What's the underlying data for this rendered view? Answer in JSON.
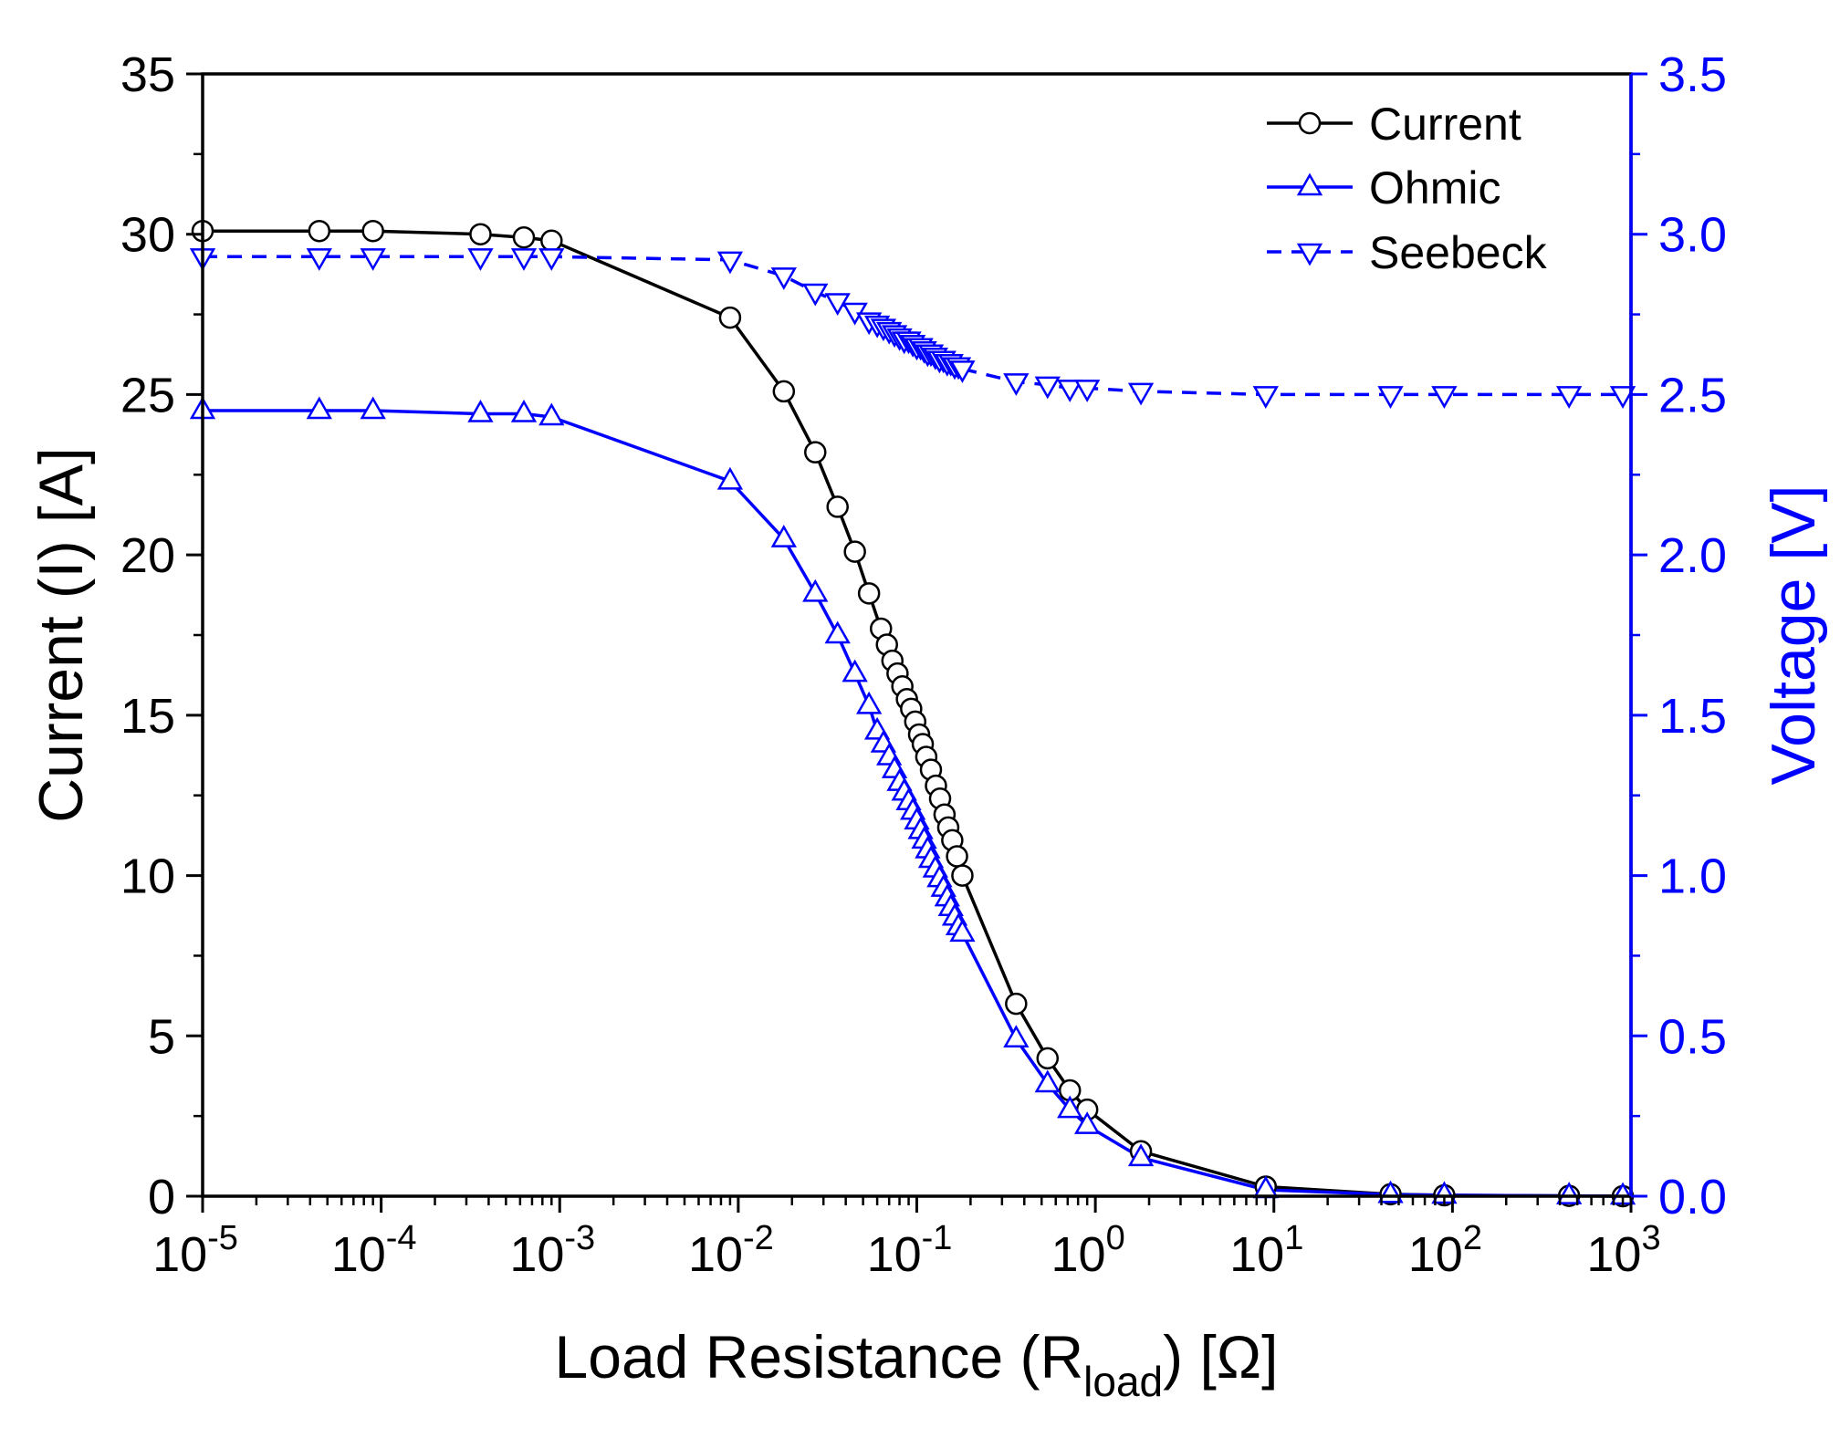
{
  "chart_data": {
    "type": "line",
    "title": "",
    "xlabel": "Load Resistance (R",
    "xlabel_sub": "load",
    "xlabel_tail": ") [Ω]",
    "ylabel": "Current (I) [A]",
    "y2label": "Voltage [V]",
    "xscale": "log",
    "xlim": [
      1e-05,
      1000
    ],
    "ylim": [
      0,
      35
    ],
    "y2lim": [
      0,
      3.5
    ],
    "x_tick_labels": [
      {
        "base": "10",
        "exp": "-5"
      },
      {
        "base": "10",
        "exp": "-4"
      },
      {
        "base": "10",
        "exp": "-3"
      },
      {
        "base": "10",
        "exp": "-2"
      },
      {
        "base": "10",
        "exp": "-1"
      },
      {
        "base": "10",
        "exp": "0"
      },
      {
        "base": "10",
        "exp": "1"
      },
      {
        "base": "10",
        "exp": "2"
      },
      {
        "base": "10",
        "exp": "3"
      }
    ],
    "y_ticks": [
      "0",
      "5",
      "10",
      "15",
      "20",
      "25",
      "30",
      "35"
    ],
    "y2_ticks": [
      "0.0",
      "0.5",
      "1.0",
      "1.5",
      "2.0",
      "2.5",
      "3.0",
      "3.5"
    ],
    "legend": {
      "position": "top-right"
    },
    "colors": {
      "current": "#000000",
      "ohmic": "#0000ff",
      "seebeck": "#0000ff",
      "right_axis": "#0000ff"
    },
    "series": [
      {
        "name": "Current",
        "axis": "left",
        "marker": "circle",
        "line": "solid",
        "color": "#000000",
        "x": [
          1e-05,
          4.5e-05,
          9e-05,
          0.00036,
          0.00063,
          0.0009,
          0.009,
          0.018,
          0.027,
          0.036,
          0.045,
          0.054,
          0.063,
          0.068,
          0.073,
          0.078,
          0.083,
          0.088,
          0.093,
          0.098,
          0.103,
          0.108,
          0.113,
          0.12,
          0.128,
          0.135,
          0.143,
          0.15,
          0.158,
          0.168,
          0.18,
          0.36,
          0.54,
          0.72,
          0.9,
          1.8,
          9,
          45,
          90,
          450,
          900
        ],
        "y": [
          30.1,
          30.1,
          30.1,
          30.0,
          29.9,
          29.8,
          27.4,
          25.1,
          23.2,
          21.5,
          20.1,
          18.8,
          17.7,
          17.2,
          16.7,
          16.3,
          15.9,
          15.5,
          15.2,
          14.8,
          14.4,
          14.1,
          13.7,
          13.3,
          12.8,
          12.4,
          11.9,
          11.5,
          11.1,
          10.6,
          10.0,
          6.0,
          4.3,
          3.3,
          2.7,
          1.4,
          0.3,
          0.06,
          0.03,
          0.01,
          0.0
        ]
      },
      {
        "name": "Ohmic",
        "axis": "right",
        "marker": "triangle-up",
        "line": "solid",
        "color": "#0000ff",
        "x": [
          1e-05,
          4.5e-05,
          9e-05,
          0.00036,
          0.00063,
          0.0009,
          0.009,
          0.018,
          0.027,
          0.036,
          0.045,
          0.054,
          0.06,
          0.065,
          0.07,
          0.075,
          0.08,
          0.085,
          0.09,
          0.095,
          0.1,
          0.105,
          0.11,
          0.115,
          0.12,
          0.127,
          0.134,
          0.141,
          0.148,
          0.155,
          0.163,
          0.171,
          0.18,
          0.36,
          0.54,
          0.72,
          0.9,
          1.8,
          9,
          45,
          90,
          450,
          900
        ],
        "y": [
          2.45,
          2.45,
          2.45,
          2.44,
          2.44,
          2.43,
          2.23,
          2.05,
          1.88,
          1.75,
          1.63,
          1.53,
          1.45,
          1.41,
          1.37,
          1.33,
          1.29,
          1.26,
          1.23,
          1.2,
          1.17,
          1.14,
          1.11,
          1.08,
          1.05,
          1.02,
          0.99,
          0.96,
          0.93,
          0.9,
          0.87,
          0.84,
          0.82,
          0.49,
          0.35,
          0.27,
          0.22,
          0.12,
          0.02,
          0.005,
          0.003,
          0.001,
          0.0
        ]
      },
      {
        "name": "Seebeck",
        "axis": "right",
        "marker": "triangle-down",
        "line": "dashed",
        "color": "#0000ff",
        "x": [
          1e-05,
          4.5e-05,
          9e-05,
          0.00036,
          0.00063,
          0.0009,
          0.009,
          0.018,
          0.027,
          0.036,
          0.045,
          0.054,
          0.06,
          0.065,
          0.07,
          0.075,
          0.08,
          0.085,
          0.09,
          0.095,
          0.1,
          0.105,
          0.11,
          0.115,
          0.12,
          0.127,
          0.134,
          0.141,
          0.148,
          0.155,
          0.163,
          0.171,
          0.18,
          0.36,
          0.54,
          0.72,
          0.9,
          1.8,
          9,
          45,
          90,
          450,
          900
        ],
        "y": [
          2.93,
          2.93,
          2.93,
          2.93,
          2.93,
          2.93,
          2.92,
          2.87,
          2.82,
          2.79,
          2.76,
          2.73,
          2.72,
          2.71,
          2.7,
          2.69,
          2.68,
          2.67,
          2.67,
          2.66,
          2.65,
          2.65,
          2.64,
          2.63,
          2.63,
          2.62,
          2.61,
          2.61,
          2.6,
          2.6,
          2.59,
          2.59,
          2.58,
          2.54,
          2.53,
          2.52,
          2.52,
          2.51,
          2.5,
          2.5,
          2.5,
          2.5,
          2.5
        ]
      }
    ]
  }
}
